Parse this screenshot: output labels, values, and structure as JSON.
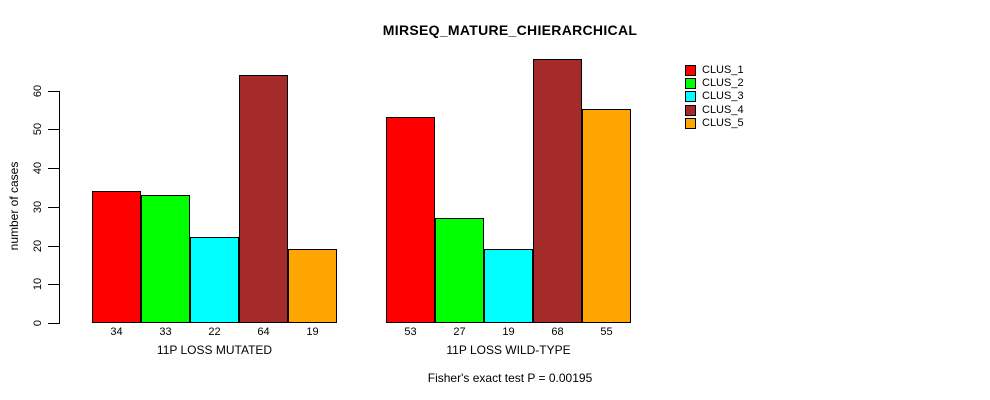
{
  "chart_data": {
    "type": "bar",
    "title": "MIRSEQ_MATURE_CHIERARCHICAL",
    "ylabel": "number of cases",
    "xlabel": "",
    "footnote": "Fisher's exact test P = 0.00195",
    "yticks": [
      0,
      10,
      20,
      30,
      40,
      50,
      60
    ],
    "ylim": [
      0,
      70
    ],
    "grid": false,
    "legend_position": "right",
    "bar_value_labels": true,
    "series": [
      {
        "name": "CLUS_1",
        "color": "#FF0000"
      },
      {
        "name": "CLUS_2",
        "color": "#00FF00"
      },
      {
        "name": "CLUS_3",
        "color": "#00FFFF"
      },
      {
        "name": "CLUS_4",
        "color": "#A52A2A"
      },
      {
        "name": "CLUS_5",
        "color": "#FFA500"
      }
    ],
    "categories": [
      "11P LOSS MUTATED",
      "11P LOSS WILD-TYPE"
    ],
    "groups": [
      {
        "label": "11P LOSS MUTATED",
        "values": [
          34,
          33,
          22,
          64,
          19
        ]
      },
      {
        "label": "11P LOSS WILD-TYPE",
        "values": [
          53,
          27,
          19,
          68,
          55
        ]
      }
    ]
  }
}
